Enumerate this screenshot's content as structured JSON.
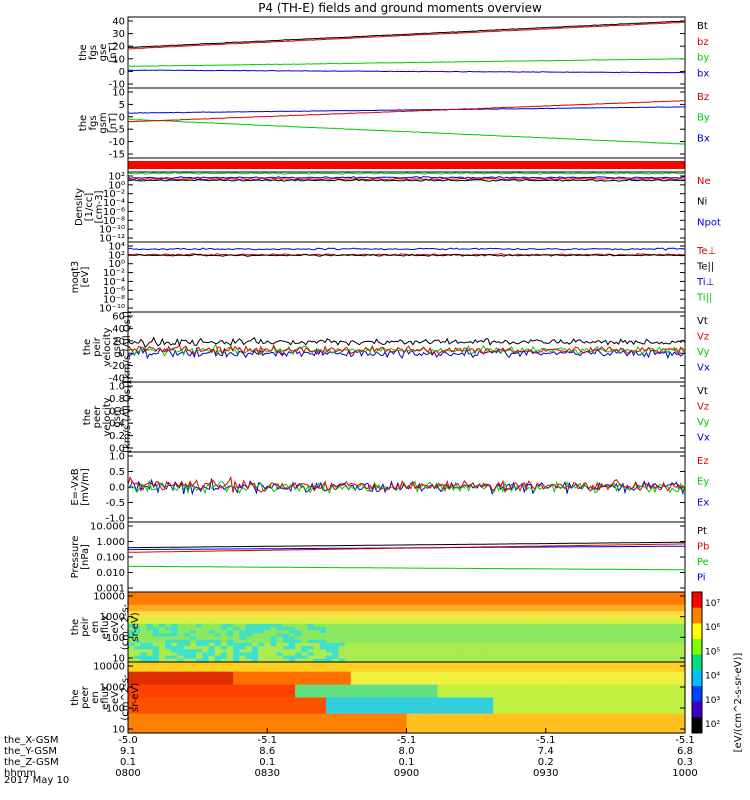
{
  "title": "P4 (TH-E) fields and ground moments overview",
  "colors": {
    "black": "#000000",
    "red": "#dd0000",
    "green": "#00cc00",
    "blue": "#0000dd",
    "grey": "#666666"
  },
  "panels": [
    {
      "id": "fgs-gse",
      "ylabel": [
        "the",
        "fgs",
        "gse",
        "[nT]"
      ],
      "yticks": [
        "40",
        "30",
        "20",
        "10",
        "0",
        "-10"
      ],
      "legend": [
        {
          "t": "Bt",
          "c": "black"
        },
        {
          "t": "bz",
          "c": "red"
        },
        {
          "t": "by",
          "c": "green"
        },
        {
          "t": "bx",
          "c": "blue"
        }
      ]
    },
    {
      "id": "fgs-gsm",
      "ylabel": [
        "the",
        "fgs",
        "gsm",
        "[nT]"
      ],
      "yticks": [
        "10",
        "5",
        "0",
        "-5",
        "-10",
        "-15"
      ],
      "legend": [
        {
          "t": "Bz",
          "c": "red"
        },
        {
          "t": "By",
          "c": "green"
        },
        {
          "t": "Bx",
          "c": "blue"
        }
      ]
    },
    {
      "id": "density",
      "ylabel": [
        "Density",
        "[1/cc]",
        "[cm-3]"
      ],
      "yticks": [
        "10²",
        "10⁰",
        "10⁻²",
        "10⁻⁴",
        "10⁻⁶",
        "10⁻⁸",
        "10⁻¹⁰",
        "10⁻¹²"
      ],
      "legend": [
        {
          "t": "Ne",
          "c": "red"
        },
        {
          "t": "Ni",
          "c": "black"
        },
        {
          "t": "Npot",
          "c": "blue"
        }
      ]
    },
    {
      "id": "temp",
      "ylabel": [
        "moqt3",
        "[eV]"
      ],
      "yticks": [
        "10⁴",
        "10²",
        "10⁰",
        "10⁻²",
        "10⁻⁴",
        "10⁻⁶",
        "10⁻⁸",
        "10⁻¹⁰"
      ],
      "legend": [
        {
          "t": "Te⊥",
          "c": "red"
        },
        {
          "t": "Te||",
          "c": "black"
        },
        {
          "t": "Ti⊥",
          "c": "blue"
        },
        {
          "t": "Ti||",
          "c": "green"
        }
      ]
    },
    {
      "id": "peir-vel",
      "ylabel": [
        "the",
        "peir",
        "velocity",
        "gsm",
        "[km/s (All Qs)]"
      ],
      "yticks": [
        "60",
        "40",
        "20",
        "0",
        "-20",
        "-40"
      ],
      "legend": [
        {
          "t": "Vt",
          "c": "black"
        },
        {
          "t": "Vz",
          "c": "red"
        },
        {
          "t": "Vy",
          "c": "green"
        },
        {
          "t": "Vx",
          "c": "blue"
        }
      ]
    },
    {
      "id": "peer-vel",
      "ylabel": [
        "the",
        "peer",
        "velocity",
        "gsm",
        "[km/s (All Qs)]"
      ],
      "yticks": [
        "1.0",
        "0.8",
        "0.6",
        "0.4",
        "0.2",
        "0.0"
      ],
      "legend": [
        {
          "t": "Vt",
          "c": "black"
        },
        {
          "t": "Vz",
          "c": "red"
        },
        {
          "t": "Vy",
          "c": "green"
        },
        {
          "t": "Vx",
          "c": "blue"
        }
      ]
    },
    {
      "id": "efield",
      "ylabel": [
        "E=-VxB",
        "[mV/m]"
      ],
      "yticks": [
        "1.0",
        "0.5",
        "0.0",
        "-0.5",
        "-1.0"
      ],
      "legend": [
        {
          "t": "Ez",
          "c": "red"
        },
        {
          "t": "Ey",
          "c": "green"
        },
        {
          "t": "Ex",
          "c": "blue"
        }
      ]
    },
    {
      "id": "pressure",
      "ylabel": [
        "Pressure",
        "[nPa]"
      ],
      "yticks": [
        "10.000",
        "1.000",
        "0.100",
        "0.010",
        "0.001"
      ],
      "legend": [
        {
          "t": "Pt",
          "c": "black"
        },
        {
          "t": "Pb",
          "c": "red"
        },
        {
          "t": "Pe",
          "c": "green"
        },
        {
          "t": "Pi",
          "c": "blue"
        }
      ]
    },
    {
      "id": "peir-en",
      "ylabel": [
        "the",
        "peir",
        "en",
        "eflux",
        "eV",
        "(cm^2-s-",
        "sr-eV)"
      ],
      "yticks": [
        "10000",
        "1000",
        "100",
        "10"
      ]
    },
    {
      "id": "peer-en",
      "ylabel": [
        "the",
        "peer",
        "en",
        "eflux",
        "eV",
        "(cm^2-s-",
        "sr-eV)"
      ],
      "yticks": [
        "10000",
        "1000",
        "100",
        "10"
      ]
    }
  ],
  "colorbar": {
    "label": "[eV/(cm^2-s-sr-eV)]",
    "ticks": [
      "10⁷",
      "10⁶",
      "10⁵",
      "10⁴",
      "10³",
      "10²"
    ]
  },
  "xaxis": {
    "rows": [
      {
        "label": "the_X-GSM",
        "values": [
          "-5.0",
          "-5.1",
          "-5.1",
          "-5.1",
          "-5.1"
        ]
      },
      {
        "label": "the_Y-GSM",
        "values": [
          "9.1",
          "8.6",
          "8.0",
          "7.4",
          "6.8"
        ]
      },
      {
        "label": "the_Z-GSM",
        "values": [
          "0.1",
          "0.1",
          "0.1",
          "0.2",
          "0.3"
        ]
      },
      {
        "label": "hhmm",
        "values": [
          "0800",
          "0830",
          "0900",
          "0930",
          "1000"
        ]
      }
    ],
    "date": "2017 May 10"
  },
  "chart_data": {
    "type": "line",
    "title": "P4 (TH-E) fields and ground moments overview",
    "time_range": [
      "0800",
      "1000"
    ],
    "panels": [
      {
        "name": "the fgs gse [nT]",
        "ylim": [
          -10,
          40
        ],
        "series": [
          {
            "name": "Bt",
            "start": 19,
            "end": 40
          },
          {
            "name": "bz",
            "start": 18,
            "end": 39
          },
          {
            "name": "by",
            "start": 4,
            "end": 10
          },
          {
            "name": "bx",
            "start": 1,
            "end": -1
          }
        ]
      },
      {
        "name": "the fgs gsm [nT]",
        "ylim": [
          -15,
          10
        ],
        "series": [
          {
            "name": "Bz",
            "start": -2,
            "end": 6.5
          },
          {
            "name": "By",
            "start": -1,
            "end": -11
          },
          {
            "name": "Bx",
            "start": 1.5,
            "end": 4
          }
        ]
      },
      {
        "name": "the peir velocity gsm [km/s (All Qs)]",
        "ylim": [
          -40,
          60
        ],
        "series": [
          {
            "name": "Vt",
            "mean": 18
          },
          {
            "name": "Vz",
            "mean": 5
          },
          {
            "name": "Vy",
            "mean": 5
          },
          {
            "name": "Vx",
            "mean": 0
          }
        ]
      },
      {
        "name": "E=-VxB [mV/m]",
        "ylim": [
          -1,
          1
        ],
        "series": [
          {
            "name": "Ez",
            "mean": 0.05
          },
          {
            "name": "Ey",
            "mean": 0.0
          },
          {
            "name": "Ex",
            "mean": 0.0
          }
        ]
      },
      {
        "name": "Pressure [nPa]",
        "ylim": [
          0.001,
          10
        ],
        "scale": "log",
        "series": [
          {
            "name": "Pt",
            "start": 0.4,
            "end": 0.9
          },
          {
            "name": "Pb",
            "start": 0.2,
            "end": 0.7
          },
          {
            "name": "Pe",
            "start": 0.025,
            "end": 0.015
          },
          {
            "name": "Pi",
            "start": 0.3,
            "end": 0.5
          }
        ]
      }
    ]
  }
}
